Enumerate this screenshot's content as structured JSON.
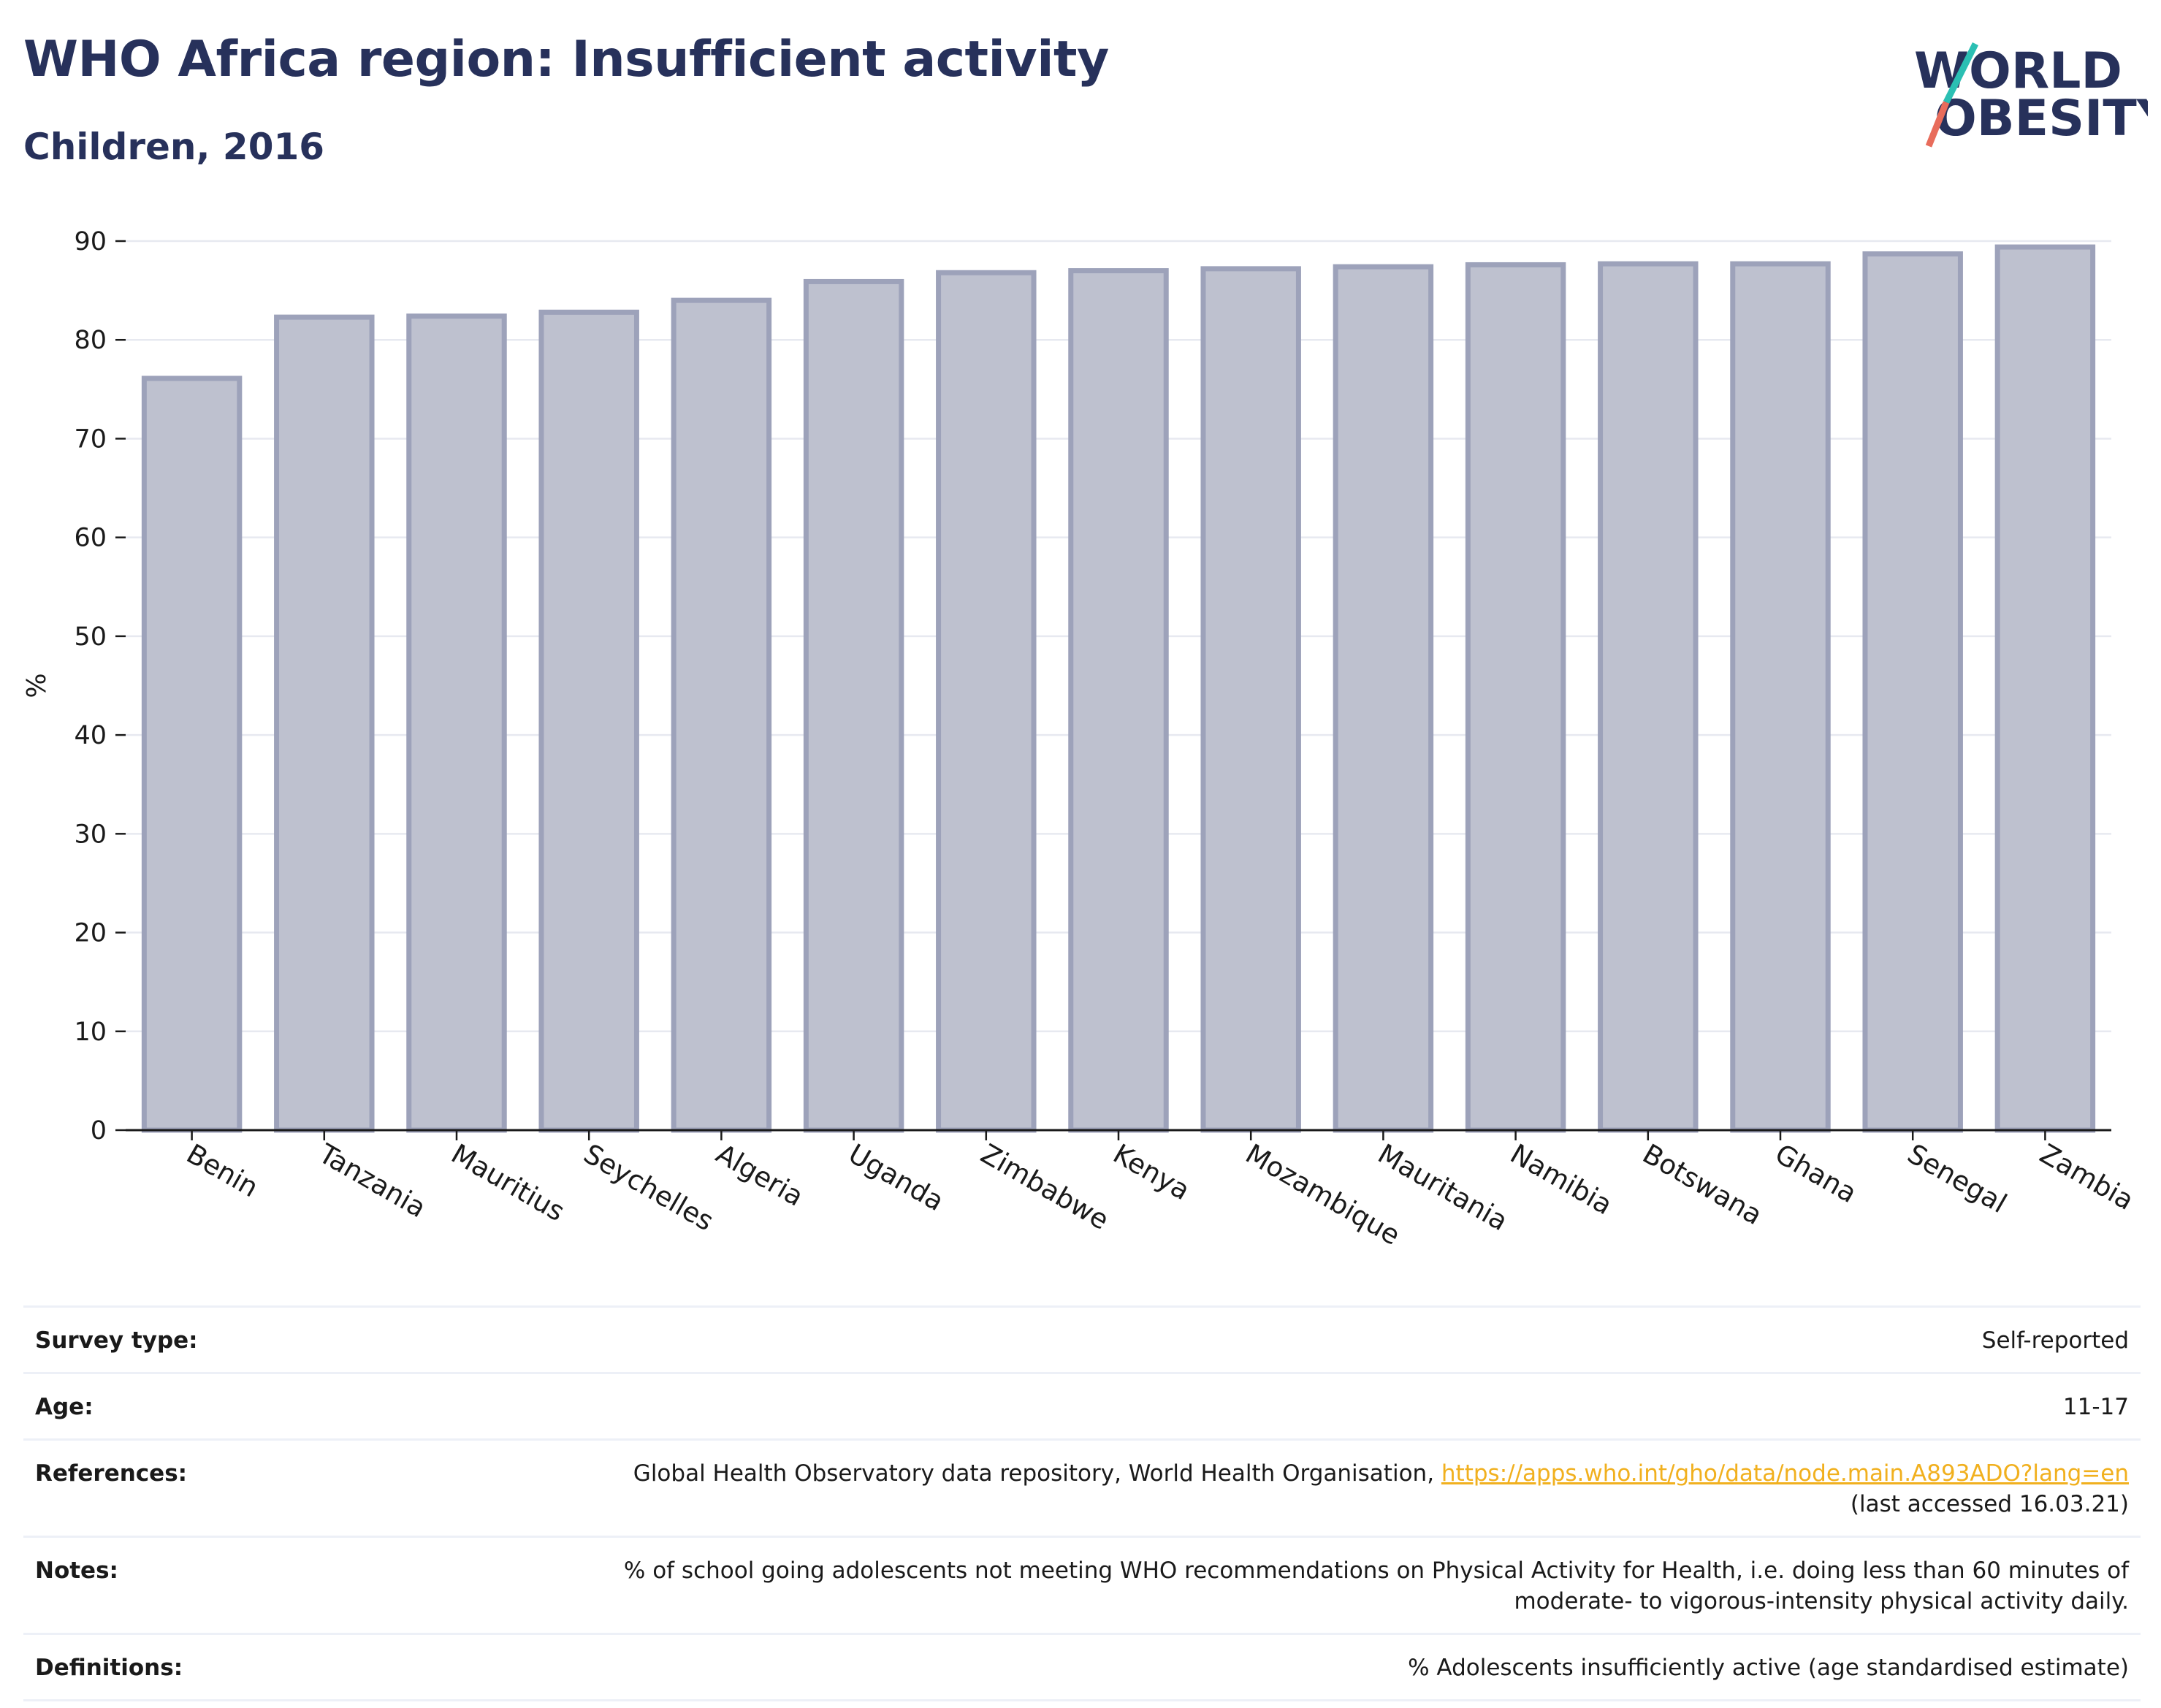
{
  "header": {
    "title": "WHO Africa region: Insufficient activity",
    "subtitle": "Children, 2016"
  },
  "logo": {
    "line1": "WORLD",
    "line2": "OBESITY",
    "colors": {
      "text": "#27315b",
      "slash_top": "#2bbfb3",
      "slash_bottom": "#e86c5b"
    }
  },
  "chart_data": {
    "type": "bar",
    "categories": [
      "Benin",
      "Tanzania",
      "Mauritius",
      "Seychelles",
      "Algeria",
      "Uganda",
      "Zimbabwe",
      "Kenya",
      "Mozambique",
      "Mauritania",
      "Namibia",
      "Botswana",
      "Ghana",
      "Senegal",
      "Zambia"
    ],
    "values": [
      76.1,
      82.3,
      82.4,
      82.8,
      84.0,
      85.9,
      86.8,
      87.0,
      87.2,
      87.4,
      87.6,
      87.7,
      87.7,
      88.7,
      89.4
    ],
    "ylabel": "%",
    "ylim": [
      0,
      90
    ],
    "yticks": [
      0,
      10,
      20,
      30,
      40,
      50,
      60,
      70,
      80,
      90
    ],
    "grid": true,
    "colors": {
      "bar_fill": "#bec1cf",
      "bar_stroke": "#9da2ba",
      "axis": "#1a1a1a",
      "grid": "#e7e9f0"
    }
  },
  "meta": {
    "survey_label": "Survey type:",
    "survey_value": "Self-reported",
    "age_label": "Age:",
    "age_value": "11-17",
    "references_label": "References:",
    "references_text": "Global Health Observatory data repository, World Health Organisation, ",
    "references_link": "https://apps.who.int/gho/data/node.main.A893ADO?lang=en",
    "references_accessed": "(last accessed 16.03.21)",
    "notes_label": "Notes:",
    "notes_line1": "% of school going adolescents not meeting WHO recommendations on Physical Activity for Health, i.e. doing less than 60 minutes of",
    "notes_line2": "moderate- to vigorous-intensity physical activity daily.",
    "definitions_label": "Definitions:",
    "definitions_value": "% Adolescents insufficiently active (age standardised estimate)"
  }
}
